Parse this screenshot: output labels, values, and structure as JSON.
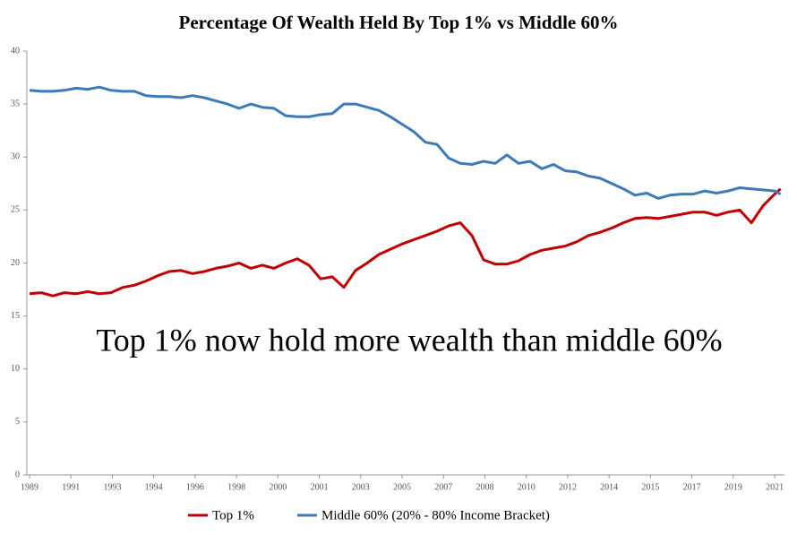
{
  "chart_data": {
    "type": "line",
    "title": "Percentage Of Wealth Held By Top 1% vs Middle 60%",
    "annotation": "Top 1% now hold more wealth than middle 60%",
    "x": [
      1989,
      1989.5,
      1990,
      1990.5,
      1991,
      1991.5,
      1992,
      1992.5,
      1993,
      1993.5,
      1994,
      1994.5,
      1995,
      1995.5,
      1996,
      1996.5,
      1997,
      1997.5,
      1998,
      1998.5,
      1999,
      1999.5,
      2000,
      2000.5,
      2001,
      2001.5,
      2002,
      2002.5,
      2003,
      2003.5,
      2004,
      2004.5,
      2005,
      2005.5,
      2006,
      2006.5,
      2007,
      2007.5,
      2008,
      2008.5,
      2009,
      2009.5,
      2010,
      2010.5,
      2011,
      2011.5,
      2012,
      2012.5,
      2013,
      2013.5,
      2014,
      2014.5,
      2015,
      2015.5,
      2016,
      2016.5,
      2017,
      2017.5,
      2018,
      2018.5,
      2019,
      2019.5,
      2020,
      2020.5,
      2021,
      2021.25
    ],
    "series": [
      {
        "name": "Top 1%",
        "color": "#c00000",
        "values": [
          17.1,
          17.2,
          16.9,
          17.2,
          17.1,
          17.3,
          17.1,
          17.2,
          17.7,
          17.9,
          18.3,
          18.8,
          19.2,
          19.3,
          19.0,
          19.2,
          19.5,
          19.7,
          20.0,
          19.5,
          19.8,
          19.5,
          20.0,
          20.4,
          19.8,
          18.5,
          18.7,
          17.7,
          19.3,
          20.0,
          20.8,
          21.3,
          21.8,
          22.2,
          22.6,
          23.0,
          23.5,
          23.8,
          22.6,
          20.3,
          19.9,
          19.9,
          20.2,
          20.8,
          21.2,
          21.4,
          21.6,
          22.0,
          22.6,
          22.9,
          23.3,
          23.8,
          24.2,
          24.3,
          24.2,
          24.4,
          24.6,
          24.8,
          24.8,
          24.5,
          24.8,
          25.0,
          23.8,
          25.4,
          26.5,
          27.0
        ]
      },
      {
        "name": "Middle 60% (20% - 80% Income Bracket)",
        "color": "#3d7ab8",
        "values": [
          36.3,
          36.2,
          36.2,
          36.3,
          36.5,
          36.4,
          36.6,
          36.3,
          36.2,
          36.2,
          35.8,
          35.7,
          35.7,
          35.6,
          35.8,
          35.6,
          35.3,
          35.0,
          34.6,
          35.0,
          34.7,
          34.6,
          33.9,
          33.8,
          33.8,
          34.0,
          34.1,
          35.0,
          35.0,
          34.7,
          34.4,
          33.8,
          33.1,
          32.4,
          31.4,
          31.2,
          29.9,
          29.4,
          29.3,
          29.6,
          29.4,
          30.2,
          29.4,
          29.6,
          28.9,
          29.3,
          28.7,
          28.6,
          28.2,
          28.0,
          27.5,
          27.0,
          26.4,
          26.6,
          26.1,
          26.4,
          26.5,
          26.5,
          26.8,
          26.6,
          26.8,
          27.1,
          27.0,
          26.9,
          26.8,
          26.5
        ]
      }
    ],
    "xlim": [
      1988.885,
      2021.42
    ],
    "xticks": [
      {
        "value": 1989,
        "label": "1989"
      },
      {
        "value": 1990.778,
        "label": "1991"
      },
      {
        "value": 1992.556,
        "label": "1993"
      },
      {
        "value": 1994.333,
        "label": "1994"
      },
      {
        "value": 1996.111,
        "label": "1996"
      },
      {
        "value": 1997.889,
        "label": "1998"
      },
      {
        "value": 1999.667,
        "label": "2000"
      },
      {
        "value": 2001.444,
        "label": "2001"
      },
      {
        "value": 2003.222,
        "label": "2003"
      },
      {
        "value": 2005,
        "label": "2005"
      },
      {
        "value": 2006.778,
        "label": "2007"
      },
      {
        "value": 2008.556,
        "label": "2008"
      },
      {
        "value": 2010.333,
        "label": "2010"
      },
      {
        "value": 2012.111,
        "label": "2012"
      },
      {
        "value": 2013.889,
        "label": "2014"
      },
      {
        "value": 2015.667,
        "label": "2015"
      },
      {
        "value": 2017.444,
        "label": "2017"
      },
      {
        "value": 2019.222,
        "label": "2019"
      },
      {
        "value": 2021,
        "label": "2021"
      }
    ],
    "ylim": [
      0,
      40
    ],
    "yticks": [
      0,
      5,
      10,
      15,
      20,
      25,
      30,
      35,
      40
    ],
    "legend": "bottom"
  }
}
